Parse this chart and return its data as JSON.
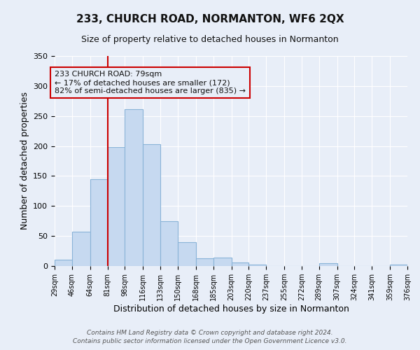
{
  "title": "233, CHURCH ROAD, NORMANTON, WF6 2QX",
  "subtitle": "Size of property relative to detached houses in Normanton",
  "xlabel": "Distribution of detached houses by size in Normanton",
  "ylabel": "Number of detached properties",
  "bar_color": "#c6d9f0",
  "bar_edge_color": "#8ab4d8",
  "background_color": "#e8eef8",
  "axes_background": "#e8eef8",
  "grid_color": "#ffffff",
  "annotation_box_color": "#cc0000",
  "annotation_text": "233 CHURCH ROAD: 79sqm\n← 17% of detached houses are smaller (172)\n82% of semi-detached houses are larger (835) →",
  "vline_x": 81,
  "vline_color": "#cc0000",
  "bins": [
    29,
    46,
    64,
    81,
    98,
    116,
    133,
    150,
    168,
    185,
    203,
    220,
    237,
    255,
    272,
    289,
    307,
    324,
    341,
    359,
    376
  ],
  "counts": [
    10,
    57,
    145,
    198,
    261,
    203,
    75,
    40,
    13,
    14,
    6,
    2,
    0,
    0,
    0,
    5,
    0,
    0,
    0,
    2
  ],
  "ylim": [
    0,
    350
  ],
  "yticks": [
    0,
    50,
    100,
    150,
    200,
    250,
    300,
    350
  ],
  "footer_line1": "Contains HM Land Registry data © Crown copyright and database right 2024.",
  "footer_line2": "Contains public sector information licensed under the Open Government Licence v3.0."
}
